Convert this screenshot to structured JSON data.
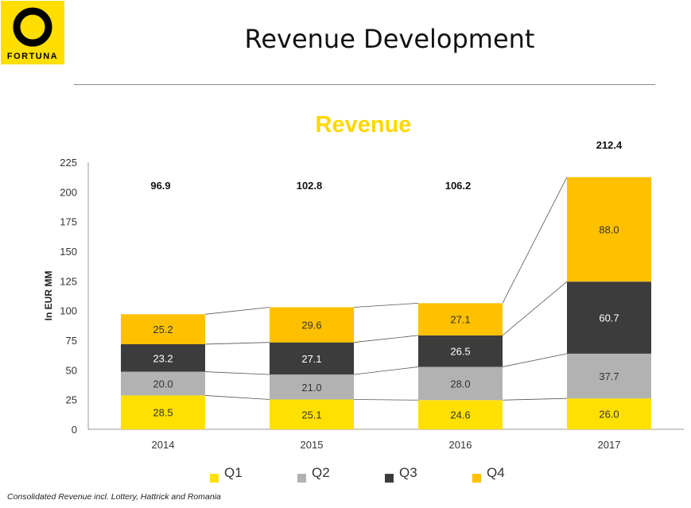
{
  "header": {
    "title": "Revenue Development"
  },
  "logo": {
    "text": "FORTUNA",
    "color": "#FFDE00"
  },
  "footnote": "Consolidated Revenue incl. Lottery, Hattrick and Romania",
  "colors": {
    "Q1": "#FFE000",
    "Q2": "#B2B2B2",
    "Q3": "#3C3C3C",
    "Q4": "#FFC000",
    "title": "#FFD700"
  },
  "chart_data": {
    "type": "bar",
    "stacked": true,
    "title": "Revenue",
    "ylabel": "In EUR MM",
    "xlabel": "",
    "categories": [
      "2014",
      "2015",
      "2016",
      "2017"
    ],
    "series": [
      {
        "name": "Q1",
        "values": [
          28.5,
          25.1,
          24.6,
          26.0
        ]
      },
      {
        "name": "Q2",
        "values": [
          20.0,
          21.0,
          28.0,
          37.7
        ]
      },
      {
        "name": "Q3",
        "values": [
          23.2,
          27.1,
          26.5,
          60.7
        ]
      },
      {
        "name": "Q4",
        "values": [
          25.2,
          29.6,
          27.1,
          88.0
        ]
      }
    ],
    "totals": [
      96.9,
      102.8,
      106.2,
      212.4
    ],
    "ylim": [
      0,
      225
    ],
    "yticks": [
      0,
      25,
      50,
      75,
      100,
      125,
      150,
      175,
      200,
      225
    ],
    "grid": false,
    "legend": "bottom"
  }
}
